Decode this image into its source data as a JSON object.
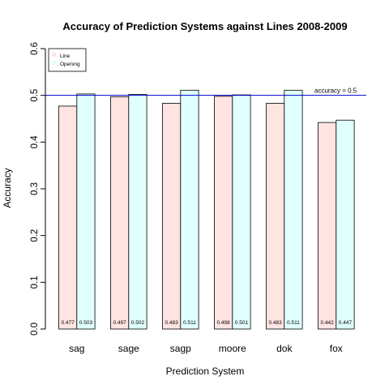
{
  "chart_data": {
    "type": "bar",
    "title": "Accuracy of Prediction Systems against Lines 2008-2009",
    "xlabel": "Prediction System",
    "ylabel": "Accuracy",
    "ylim": [
      0,
      0.6
    ],
    "yticks": [
      "0.0",
      "0.1",
      "0.2",
      "0.3",
      "0.4",
      "0.5",
      "0.6"
    ],
    "categories": [
      "sag",
      "sage",
      "sagp",
      "moore",
      "dok",
      "fox"
    ],
    "series": [
      {
        "name": "Line",
        "color": "#ffe4e1",
        "values": [
          0.477,
          0.497,
          0.483,
          0.498,
          0.483,
          0.442
        ],
        "labels": [
          "0.477",
          "0.497",
          "0.483",
          "0.498",
          "0.483",
          "0.442"
        ]
      },
      {
        "name": "Opening",
        "color": "#e0ffff",
        "values": [
          0.503,
          0.502,
          0.511,
          0.501,
          0.511,
          0.447
        ],
        "labels": [
          "0.503",
          "0.502",
          "0.511",
          "0.501",
          "0.511",
          "0.447"
        ]
      }
    ],
    "reference_line": {
      "value": 0.5,
      "label": "accuracy = 0.5",
      "color": "#0000cc"
    },
    "legend_position": "top-left",
    "grid": false
  }
}
